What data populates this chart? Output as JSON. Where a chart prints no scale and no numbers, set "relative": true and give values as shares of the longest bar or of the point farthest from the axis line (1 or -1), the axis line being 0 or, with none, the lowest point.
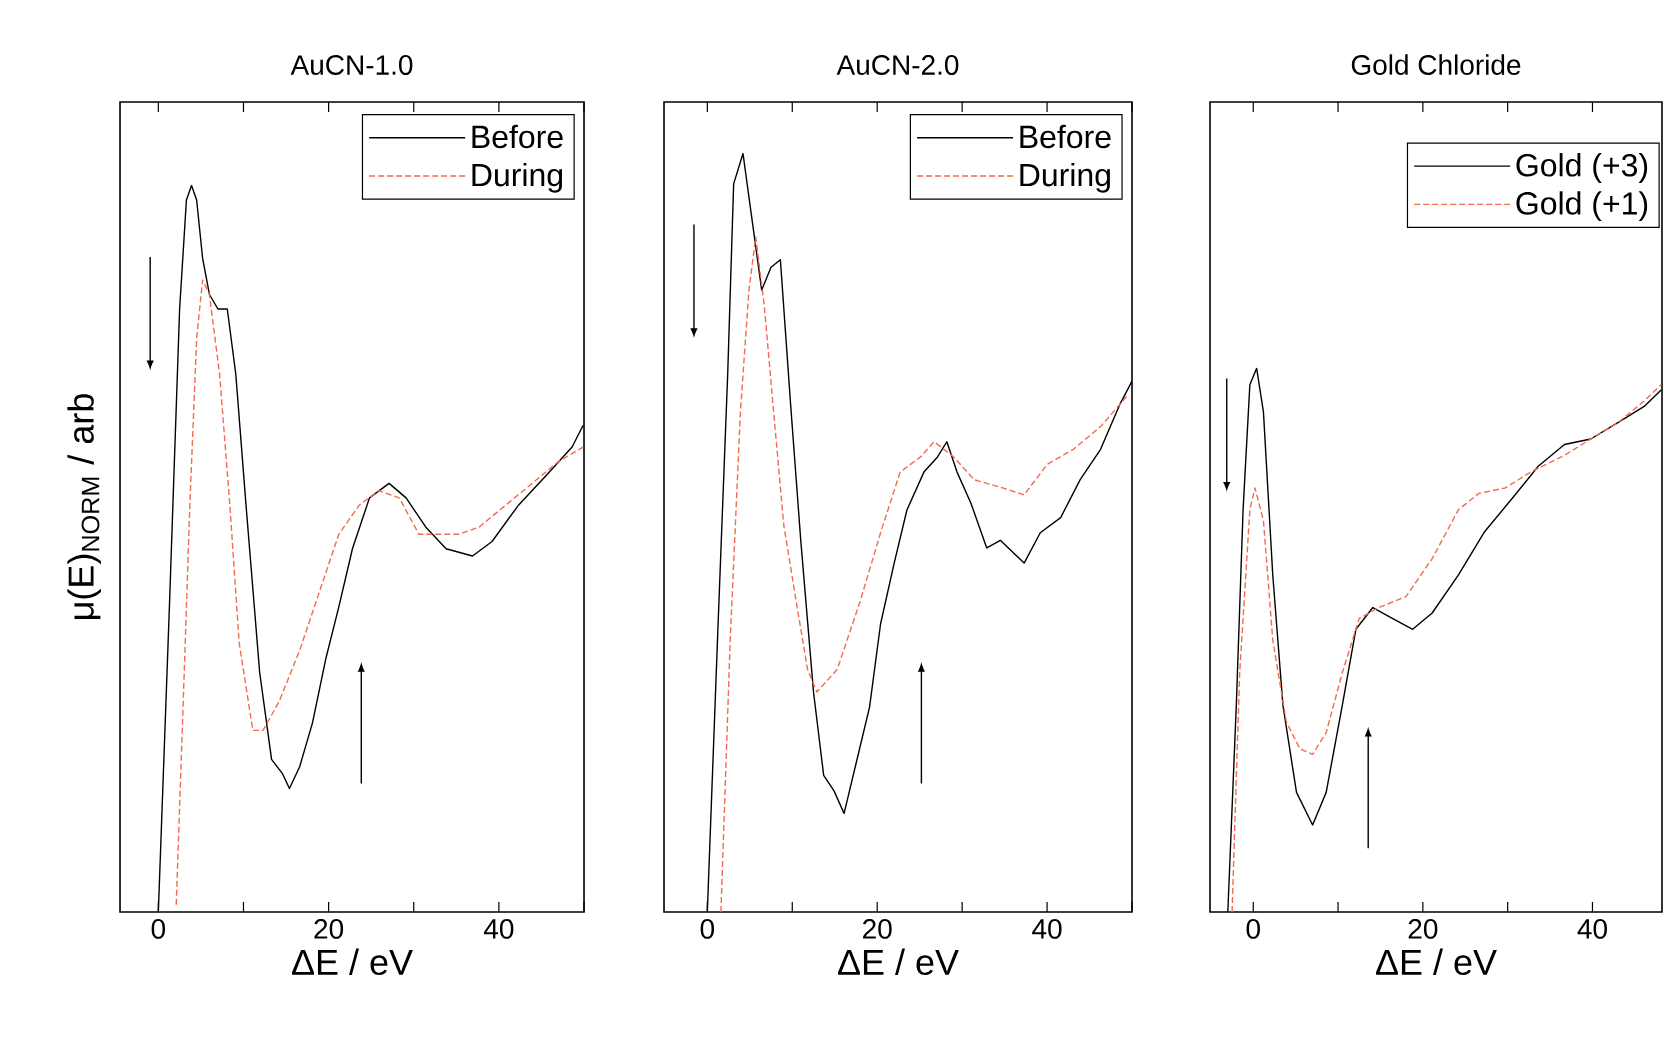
{
  "chart_data": [
    {
      "type": "line",
      "title": "AuCN-1.0",
      "xlabel": "ΔE / eV",
      "ylabel": "μ(E)$_{NORM}$ / arb",
      "relative": true,
      "legend": "top right",
      "tick_labels": "x",
      "xlim": [
        -4.5,
        50
      ],
      "xticks": [
        0,
        {
          "value": 10,
          "label": null
        },
        20,
        {
          "value": 30,
          "label": null
        },
        40,
        {
          "value": 50,
          "label": null
        }
      ],
      "series": [
        {
          "name": "Before",
          "color": "#000000",
          "line_style": "solid",
          "x": [
            0,
            1.3,
            2.5,
            3.3,
            3.9,
            4.5,
            5.2,
            6.0,
            7.0,
            8.1,
            9.1,
            10.3,
            11.9,
            13.3,
            14.6,
            15.4,
            16.6,
            18.1,
            19.7,
            21.2,
            22.8,
            24.8,
            27.1,
            29.1,
            31.4,
            33.8,
            36.9,
            39.2,
            42.3,
            45.5,
            48.6,
            49.9
          ],
          "values": [
            0,
            0.42,
            0.83,
            0.98,
            1.0,
            0.98,
            0.9,
            0.85,
            0.83,
            0.83,
            0.74,
            0.56,
            0.33,
            0.21,
            0.19,
            0.17,
            0.2,
            0.26,
            0.35,
            0.42,
            0.5,
            0.57,
            0.59,
            0.57,
            0.53,
            0.5,
            0.49,
            0.51,
            0.56,
            0.6,
            0.64,
            0.67
          ]
        },
        {
          "name": "During",
          "color": "#f26b4f",
          "line_style": "dashed",
          "x": [
            2.1,
            2.9,
            3.7,
            4.5,
            5.2,
            6.0,
            7.2,
            8.4,
            9.5,
            11.1,
            12.3,
            14.2,
            16.6,
            18.9,
            21.2,
            23.6,
            25.9,
            28.3,
            30.6,
            33.0,
            35.3,
            37.7,
            40.8,
            43.9,
            47.0,
            49.9
          ],
          "values": [
            0.01,
            0.28,
            0.56,
            0.79,
            0.87,
            0.85,
            0.74,
            0.56,
            0.37,
            0.25,
            0.25,
            0.29,
            0.36,
            0.44,
            0.52,
            0.56,
            0.58,
            0.57,
            0.52,
            0.52,
            0.52,
            0.53,
            0.56,
            0.59,
            0.62,
            0.64
          ]
        }
      ]
    },
    {
      "type": "line",
      "title": "AuCN-2.0",
      "xlabel": "ΔE / eV",
      "relative": true,
      "legend": "top right",
      "tick_labels": "x",
      "xlim": [
        -5.1,
        50
      ],
      "xticks": [
        0,
        {
          "value": 10,
          "label": null
        },
        20,
        {
          "value": 30,
          "label": null
        },
        40,
        {
          "value": 50,
          "label": null
        }
      ],
      "series": [
        {
          "name": "Before",
          "color": "#000000",
          "line_style": "solid",
          "x": [
            0,
            1.2,
            2.4,
            3.1,
            4.2,
            5.3,
            6.4,
            7.5,
            8.6,
            9.8,
            11.0,
            12.5,
            13.7,
            14.9,
            16.1,
            17.6,
            19.1,
            20.4,
            22.0,
            23.5,
            25.5,
            27.1,
            28.2,
            29.4,
            31.0,
            32.9,
            34.5,
            37.3,
            39.2,
            41.6,
            43.9,
            46.3,
            48.6,
            50.0
          ],
          "values": [
            0,
            0.36,
            0.71,
            0.96,
            1.0,
            0.91,
            0.82,
            0.85,
            0.86,
            0.67,
            0.49,
            0.29,
            0.18,
            0.16,
            0.13,
            0.2,
            0.27,
            0.38,
            0.46,
            0.53,
            0.58,
            0.6,
            0.62,
            0.58,
            0.54,
            0.48,
            0.49,
            0.46,
            0.5,
            0.52,
            0.57,
            0.61,
            0.67,
            0.7
          ]
        },
        {
          "name": "During",
          "color": "#f26b4f",
          "line_style": "dashed",
          "x": [
            1.6,
            2.7,
            3.9,
            4.9,
            5.7,
            6.7,
            7.8,
            9.0,
            10.6,
            11.8,
            12.9,
            15.3,
            18.0,
            20.4,
            22.7,
            25.1,
            26.7,
            29.0,
            31.4,
            34.5,
            37.3,
            40.0,
            43.1,
            46.3,
            49.4
          ],
          "values": [
            0,
            0.36,
            0.66,
            0.82,
            0.89,
            0.8,
            0.66,
            0.51,
            0.4,
            0.32,
            0.29,
            0.32,
            0.41,
            0.5,
            0.58,
            0.6,
            0.62,
            0.6,
            0.57,
            0.56,
            0.55,
            0.59,
            0.61,
            0.64,
            0.68
          ]
        }
      ]
    },
    {
      "type": "line",
      "title": "Gold Chloride",
      "xlabel": "ΔE / eV",
      "relative": true,
      "legend": "top right",
      "tick_labels": "x",
      "xlim": [
        -5.1,
        48.2
      ],
      "xticks": [
        0,
        {
          "value": 10,
          "label": null
        },
        20,
        {
          "value": 30,
          "label": null
        },
        40
      ],
      "series": [
        {
          "name": "Gold (+3)",
          "color": "#000000",
          "line_style": "solid",
          "x": [
            -3.0,
            -2.0,
            -1.2,
            -0.4,
            0.4,
            1.2,
            2.3,
            3.5,
            5.1,
            7.0,
            8.6,
            10.5,
            12.1,
            14.1,
            16.4,
            18.8,
            21.1,
            24.2,
            27.3,
            30.5,
            33.6,
            36.7,
            39.8,
            43.0,
            46.1,
            48.1
          ],
          "values": [
            0,
            0.38,
            0.74,
            0.97,
            1.0,
            0.92,
            0.62,
            0.38,
            0.22,
            0.16,
            0.22,
            0.38,
            0.52,
            0.56,
            0.54,
            0.52,
            0.55,
            0.62,
            0.7,
            0.76,
            0.82,
            0.86,
            0.87,
            0.9,
            0.93,
            0.96
          ]
        },
        {
          "name": "Gold (+1)",
          "color": "#f26b4f",
          "line_style": "dashed",
          "x": [
            -2.5,
            -1.6,
            -0.4,
            0.2,
            1.2,
            2.3,
            3.9,
            5.5,
            7.0,
            8.6,
            10.5,
            12.5,
            14.8,
            18.0,
            21.1,
            24.2,
            26.6,
            29.7,
            32.8,
            36.7,
            39.8,
            43.0,
            46.1,
            48.1
          ],
          "values": [
            0,
            0.44,
            0.74,
            0.78,
            0.72,
            0.5,
            0.35,
            0.3,
            0.29,
            0.33,
            0.44,
            0.54,
            0.56,
            0.58,
            0.65,
            0.74,
            0.77,
            0.78,
            0.81,
            0.84,
            0.87,
            0.9,
            0.94,
            0.97
          ]
        }
      ]
    }
  ]
}
